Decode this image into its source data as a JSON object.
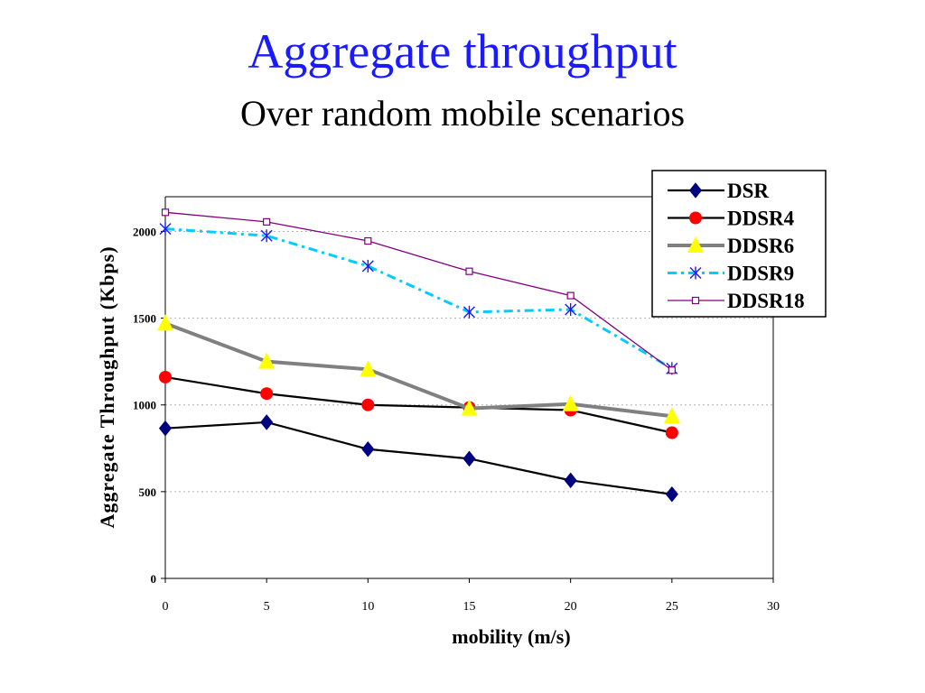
{
  "slide": {
    "title": "Aggregate throughput",
    "subtitle": "Over random mobile scenarios",
    "title_color": "#1a1aff",
    "subtitle_color": "#000000"
  },
  "chart_data": {
    "type": "line",
    "title": "Aggregate throughput",
    "subtitle": "Over random mobile scenarios",
    "xlabel": "mobility (m/s)",
    "ylabel": "Aggregate Throughput (Kbps)",
    "xlim": [
      0,
      30
    ],
    "ylim": [
      0,
      2200
    ],
    "xticks": [
      0,
      5,
      10,
      15,
      20,
      25,
      30
    ],
    "yticks": [
      0,
      500,
      1000,
      1500,
      2000
    ],
    "grid": "horizontal-dotted",
    "legend_position": "top-right",
    "x": [
      0,
      5,
      10,
      15,
      20,
      25
    ],
    "series": [
      {
        "name": "DSR",
        "values": [
          865,
          900,
          745,
          690,
          565,
          485
        ],
        "color": "#000080",
        "line_color": "#000000",
        "marker": "diamond",
        "dash": "solid"
      },
      {
        "name": "DDSR4",
        "values": [
          1160,
          1065,
          1000,
          985,
          970,
          840
        ],
        "color": "#ff0000",
        "line_color": "#000000",
        "marker": "circle",
        "dash": "solid"
      },
      {
        "name": "DDSR6",
        "values": [
          1470,
          1250,
          1205,
          980,
          1005,
          935
        ],
        "color": "#ffff00",
        "line_color": "#808080",
        "marker": "triangle",
        "dash": "solid"
      },
      {
        "name": "DDSR9",
        "values": [
          2015,
          1975,
          1800,
          1535,
          1550,
          1210
        ],
        "color": "#00ccff",
        "line_color": "#00ccff",
        "marker": "asterisk",
        "dash": "dashdot"
      },
      {
        "name": "DDSR18",
        "values": [
          2110,
          2055,
          1945,
          1770,
          1630,
          1200
        ],
        "color": "#800080",
        "line_color": "#800080",
        "marker": "square",
        "dash": "solid"
      }
    ]
  }
}
